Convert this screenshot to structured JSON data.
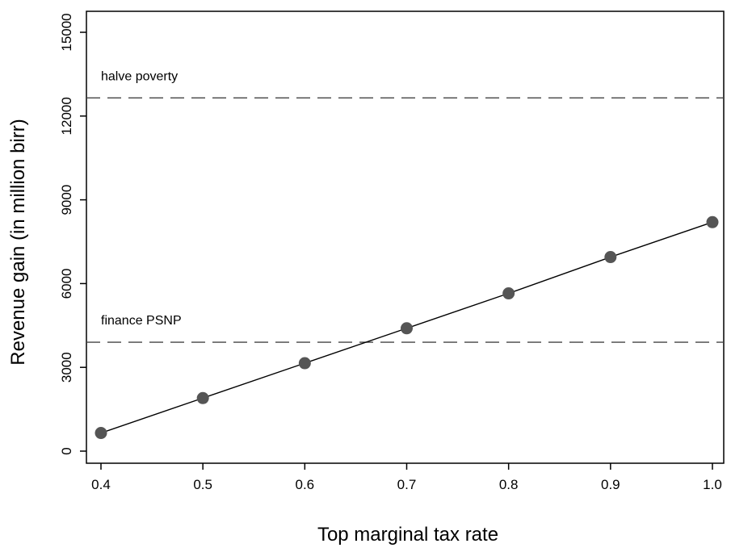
{
  "chart_data": {
    "type": "line",
    "xlabel": "Top marginal tax rate",
    "ylabel": "Revenue gain (in million birr)",
    "xlim": [
      0.4,
      1.0
    ],
    "ylim": [
      0,
      15000
    ],
    "x_ticks": [
      "0.4",
      "0.5",
      "0.6",
      "0.7",
      "0.8",
      "0.9",
      "1.0"
    ],
    "y_ticks": [
      "0",
      "3000",
      "6000",
      "9000",
      "12000",
      "15000"
    ],
    "grid": false,
    "legend": "none",
    "series": [
      {
        "x": [
          0.4,
          0.5,
          0.6,
          0.7,
          0.8,
          0.9,
          1.0
        ],
        "y": [
          650,
          1900,
          3150,
          4400,
          5650,
          6950,
          8200
        ],
        "color": "#555555",
        "marker": "filled-circle"
      }
    ],
    "reference_lines": [
      {
        "label": "halve poverty",
        "y": 12650,
        "style": "dashed"
      },
      {
        "label": "finance PSNP",
        "y": 3900,
        "style": "dashed"
      }
    ]
  }
}
